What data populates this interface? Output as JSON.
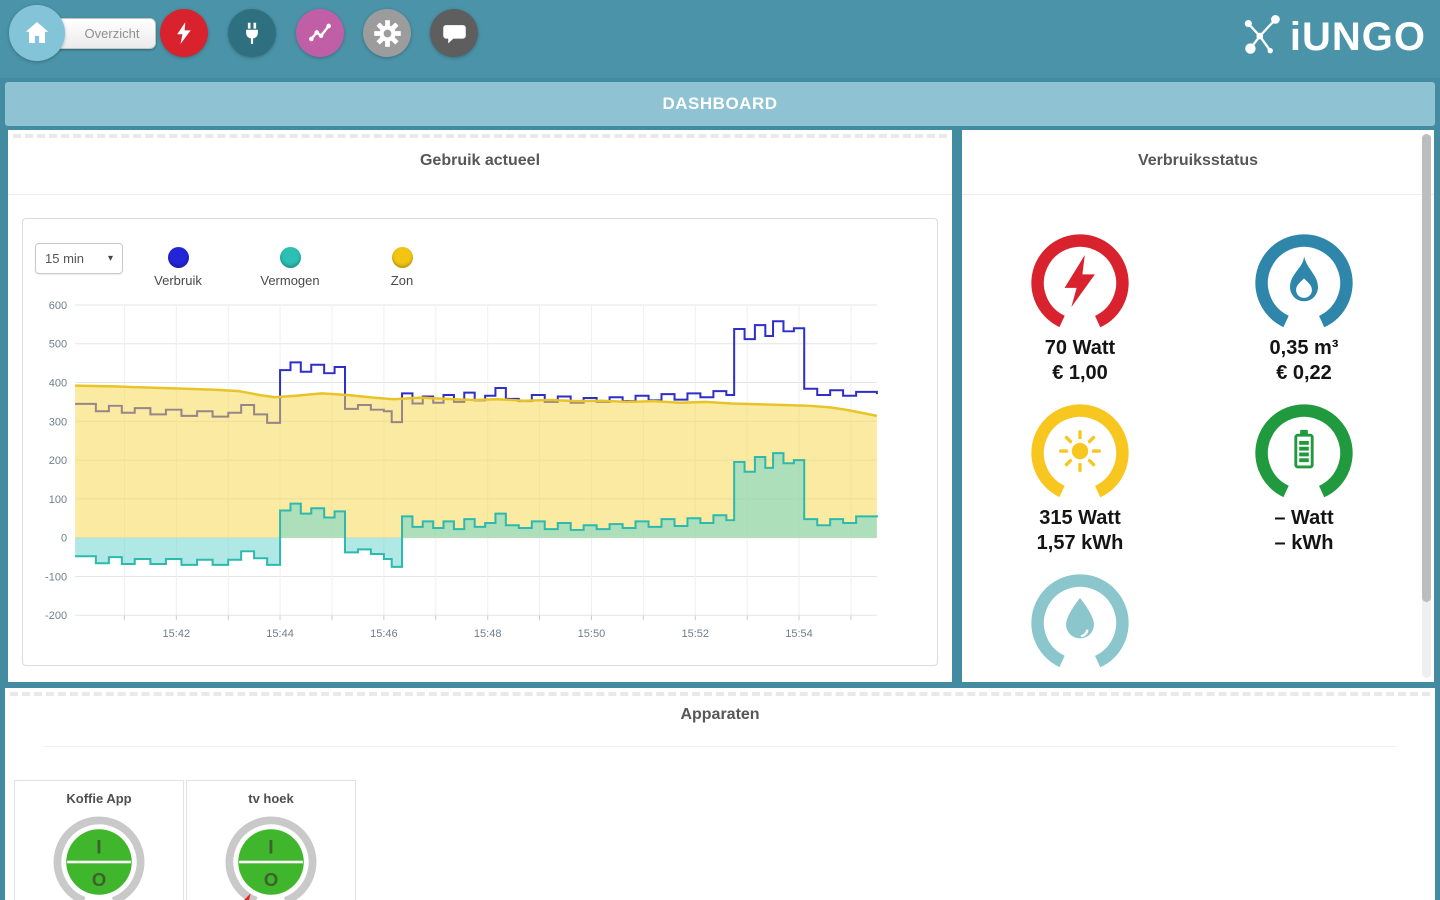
{
  "header": {
    "overview_label": "Overzicht",
    "brand": "iUNGO",
    "nav": [
      {
        "name": "home",
        "color": "#83c4d8"
      },
      {
        "name": "electricity",
        "color": "#d8232f"
      },
      {
        "name": "plug",
        "color": "#2e6f80"
      },
      {
        "name": "energy-chart",
        "color": "#c05fa5"
      },
      {
        "name": "settings",
        "color": "#9c9c9c"
      },
      {
        "name": "messages",
        "color": "#5e5e5e"
      }
    ]
  },
  "dashboard_bar": {
    "title": "DASHBOARD"
  },
  "usage_panel": {
    "title": "Gebruik actueel",
    "interval_select": {
      "value": "15 min"
    },
    "legend": [
      {
        "label": "Verbruik",
        "color": "#2525d8"
      },
      {
        "label": "Vermogen",
        "color": "#2cbfb3"
      },
      {
        "label": "Zon",
        "color": "#f3c513"
      }
    ]
  },
  "status_panel": {
    "title": "Verbruiksstatus",
    "gauges": [
      {
        "id": "electricity",
        "color": "#d8232f",
        "line1": "70 Watt",
        "line2": "€ 1,00"
      },
      {
        "id": "gas",
        "color": "#2e86ab",
        "line1": "0,35 m³",
        "line2": "€ 0,22"
      },
      {
        "id": "solar",
        "color": "#f7c71f",
        "line1": "315 Watt",
        "line2": "1,57 kWh"
      },
      {
        "id": "battery",
        "color": "#219a3f",
        "line1": "– Watt",
        "line2": "– kWh"
      },
      {
        "id": "water",
        "color": "#8ac6cc",
        "line1": "",
        "line2": ""
      }
    ]
  },
  "devices_panel": {
    "title": "Apparaten",
    "devices": [
      {
        "name": "Koffie App",
        "on_label": "I",
        "off_label": "O",
        "marker": false
      },
      {
        "name": "tv hoek",
        "on_label": "I",
        "off_label": "O",
        "marker": true
      }
    ]
  },
  "chart_data": {
    "type": "line",
    "title": "Gebruik actueel",
    "legend_position": "top",
    "grid": true,
    "x_axis": {
      "base_time": "15:40",
      "min_minute": 0.05,
      "max_minute": 15.5,
      "ticks": [
        {
          "minute": 2,
          "label": "15:42"
        },
        {
          "minute": 4,
          "label": "15:44"
        },
        {
          "minute": 6,
          "label": "15:46"
        },
        {
          "minute": 8,
          "label": "15:48"
        },
        {
          "minute": 10,
          "label": "15:50"
        },
        {
          "minute": 12,
          "label": "15:52"
        },
        {
          "minute": 14,
          "label": "15:54"
        }
      ]
    },
    "y_axis": {
      "min": -200,
      "max": 600,
      "tick_step": 100
    },
    "series": [
      {
        "name": "Verbruik",
        "color": "#2e2ec8",
        "width": 2,
        "style": "step",
        "points": [
          [
            0.05,
            345
          ],
          [
            0.45,
            326
          ],
          [
            0.7,
            340
          ],
          [
            0.95,
            322
          ],
          [
            1.2,
            334
          ],
          [
            1.5,
            318
          ],
          [
            1.8,
            330
          ],
          [
            2.1,
            314
          ],
          [
            2.4,
            326
          ],
          [
            2.7,
            312
          ],
          [
            3.0,
            322
          ],
          [
            3.25,
            342
          ],
          [
            3.5,
            318
          ],
          [
            3.75,
            296
          ],
          [
            4.0,
            432
          ],
          [
            4.2,
            452
          ],
          [
            4.4,
            428
          ],
          [
            4.6,
            446
          ],
          [
            4.85,
            424
          ],
          [
            5.05,
            440
          ],
          [
            5.25,
            332
          ],
          [
            5.5,
            342
          ],
          [
            5.75,
            330
          ],
          [
            6.0,
            326
          ],
          [
            6.15,
            298
          ],
          [
            6.35,
            372
          ],
          [
            6.55,
            346
          ],
          [
            6.75,
            364
          ],
          [
            6.95,
            348
          ],
          [
            7.15,
            368
          ],
          [
            7.35,
            350
          ],
          [
            7.55,
            374
          ],
          [
            7.75,
            354
          ],
          [
            7.95,
            366
          ],
          [
            8.15,
            386
          ],
          [
            8.35,
            358
          ],
          [
            8.6,
            352
          ],
          [
            8.85,
            368
          ],
          [
            9.1,
            350
          ],
          [
            9.35,
            364
          ],
          [
            9.6,
            348
          ],
          [
            9.85,
            360
          ],
          [
            10.1,
            350
          ],
          [
            10.35,
            362
          ],
          [
            10.6,
            352
          ],
          [
            10.85,
            366
          ],
          [
            11.1,
            354
          ],
          [
            11.35,
            370
          ],
          [
            11.6,
            356
          ],
          [
            11.85,
            372
          ],
          [
            12.1,
            362
          ],
          [
            12.35,
            378
          ],
          [
            12.6,
            368
          ],
          [
            12.75,
            538
          ],
          [
            12.95,
            512
          ],
          [
            13.15,
            548
          ],
          [
            13.35,
            520
          ],
          [
            13.5,
            558
          ],
          [
            13.7,
            532
          ],
          [
            13.9,
            540
          ],
          [
            14.1,
            384
          ],
          [
            14.35,
            368
          ],
          [
            14.6,
            380
          ],
          [
            14.85,
            366
          ],
          [
            15.1,
            376
          ],
          [
            15.5,
            370
          ]
        ]
      },
      {
        "name": "Zon",
        "color": "#e9c428",
        "width": 2.5,
        "style": "linear",
        "fill": "rgba(247,215,77,0.52)",
        "points": [
          [
            0.05,
            392
          ],
          [
            0.8,
            390
          ],
          [
            1.5,
            387
          ],
          [
            2.2,
            384
          ],
          [
            2.8,
            381
          ],
          [
            3.2,
            378
          ],
          [
            3.6,
            368
          ],
          [
            3.9,
            362
          ],
          [
            4.3,
            366
          ],
          [
            4.8,
            372
          ],
          [
            5.3,
            368
          ],
          [
            5.8,
            361
          ],
          [
            6.2,
            357
          ],
          [
            6.7,
            361
          ],
          [
            7.2,
            358
          ],
          [
            7.7,
            355
          ],
          [
            8.2,
            357
          ],
          [
            8.7,
            353
          ],
          [
            9.2,
            355
          ],
          [
            9.7,
            352
          ],
          [
            10.2,
            353
          ],
          [
            10.7,
            350
          ],
          [
            11.2,
            352
          ],
          [
            11.7,
            348
          ],
          [
            12.2,
            350
          ],
          [
            12.7,
            346
          ],
          [
            13.2,
            344
          ],
          [
            13.7,
            342
          ],
          [
            14.2,
            340
          ],
          [
            14.6,
            336
          ],
          [
            14.9,
            330
          ],
          [
            15.2,
            322
          ],
          [
            15.5,
            314
          ]
        ]
      },
      {
        "name": "Vermogen",
        "color": "#2cb9ae",
        "width": 2,
        "style": "step",
        "fill": "rgba(110,214,205,0.55)",
        "points": [
          [
            0.05,
            -48
          ],
          [
            0.45,
            -66
          ],
          [
            0.7,
            -50
          ],
          [
            0.95,
            -68
          ],
          [
            1.2,
            -55
          ],
          [
            1.5,
            -68
          ],
          [
            1.8,
            -55
          ],
          [
            2.1,
            -70
          ],
          [
            2.4,
            -57
          ],
          [
            2.7,
            -70
          ],
          [
            3.0,
            -57
          ],
          [
            3.25,
            -35
          ],
          [
            3.5,
            -53
          ],
          [
            3.75,
            -70
          ],
          [
            4.0,
            70
          ],
          [
            4.2,
            88
          ],
          [
            4.4,
            62
          ],
          [
            4.6,
            76
          ],
          [
            4.85,
            52
          ],
          [
            5.05,
            68
          ],
          [
            5.25,
            -38
          ],
          [
            5.5,
            -30
          ],
          [
            5.75,
            -42
          ],
          [
            6.0,
            -55
          ],
          [
            6.15,
            -75
          ],
          [
            6.35,
            55
          ],
          [
            6.55,
            28
          ],
          [
            6.75,
            42
          ],
          [
            6.95,
            25
          ],
          [
            7.15,
            42
          ],
          [
            7.35,
            22
          ],
          [
            7.55,
            48
          ],
          [
            7.75,
            28
          ],
          [
            7.95,
            38
          ],
          [
            8.15,
            62
          ],
          [
            8.35,
            32
          ],
          [
            8.6,
            25
          ],
          [
            8.85,
            42
          ],
          [
            9.1,
            22
          ],
          [
            9.35,
            38
          ],
          [
            9.6,
            20
          ],
          [
            9.85,
            32
          ],
          [
            10.1,
            22
          ],
          [
            10.35,
            35
          ],
          [
            10.6,
            25
          ],
          [
            10.85,
            42
          ],
          [
            11.1,
            28
          ],
          [
            11.35,
            48
          ],
          [
            11.6,
            30
          ],
          [
            11.85,
            50
          ],
          [
            12.1,
            38
          ],
          [
            12.35,
            58
          ],
          [
            12.6,
            45
          ],
          [
            12.75,
            195
          ],
          [
            12.95,
            170
          ],
          [
            13.15,
            208
          ],
          [
            13.35,
            180
          ],
          [
            13.5,
            218
          ],
          [
            13.7,
            192
          ],
          [
            13.9,
            200
          ],
          [
            14.1,
            48
          ],
          [
            14.35,
            32
          ],
          [
            14.6,
            48
          ],
          [
            14.85,
            38
          ],
          [
            15.1,
            55
          ],
          [
            15.5,
            58
          ]
        ]
      }
    ]
  }
}
